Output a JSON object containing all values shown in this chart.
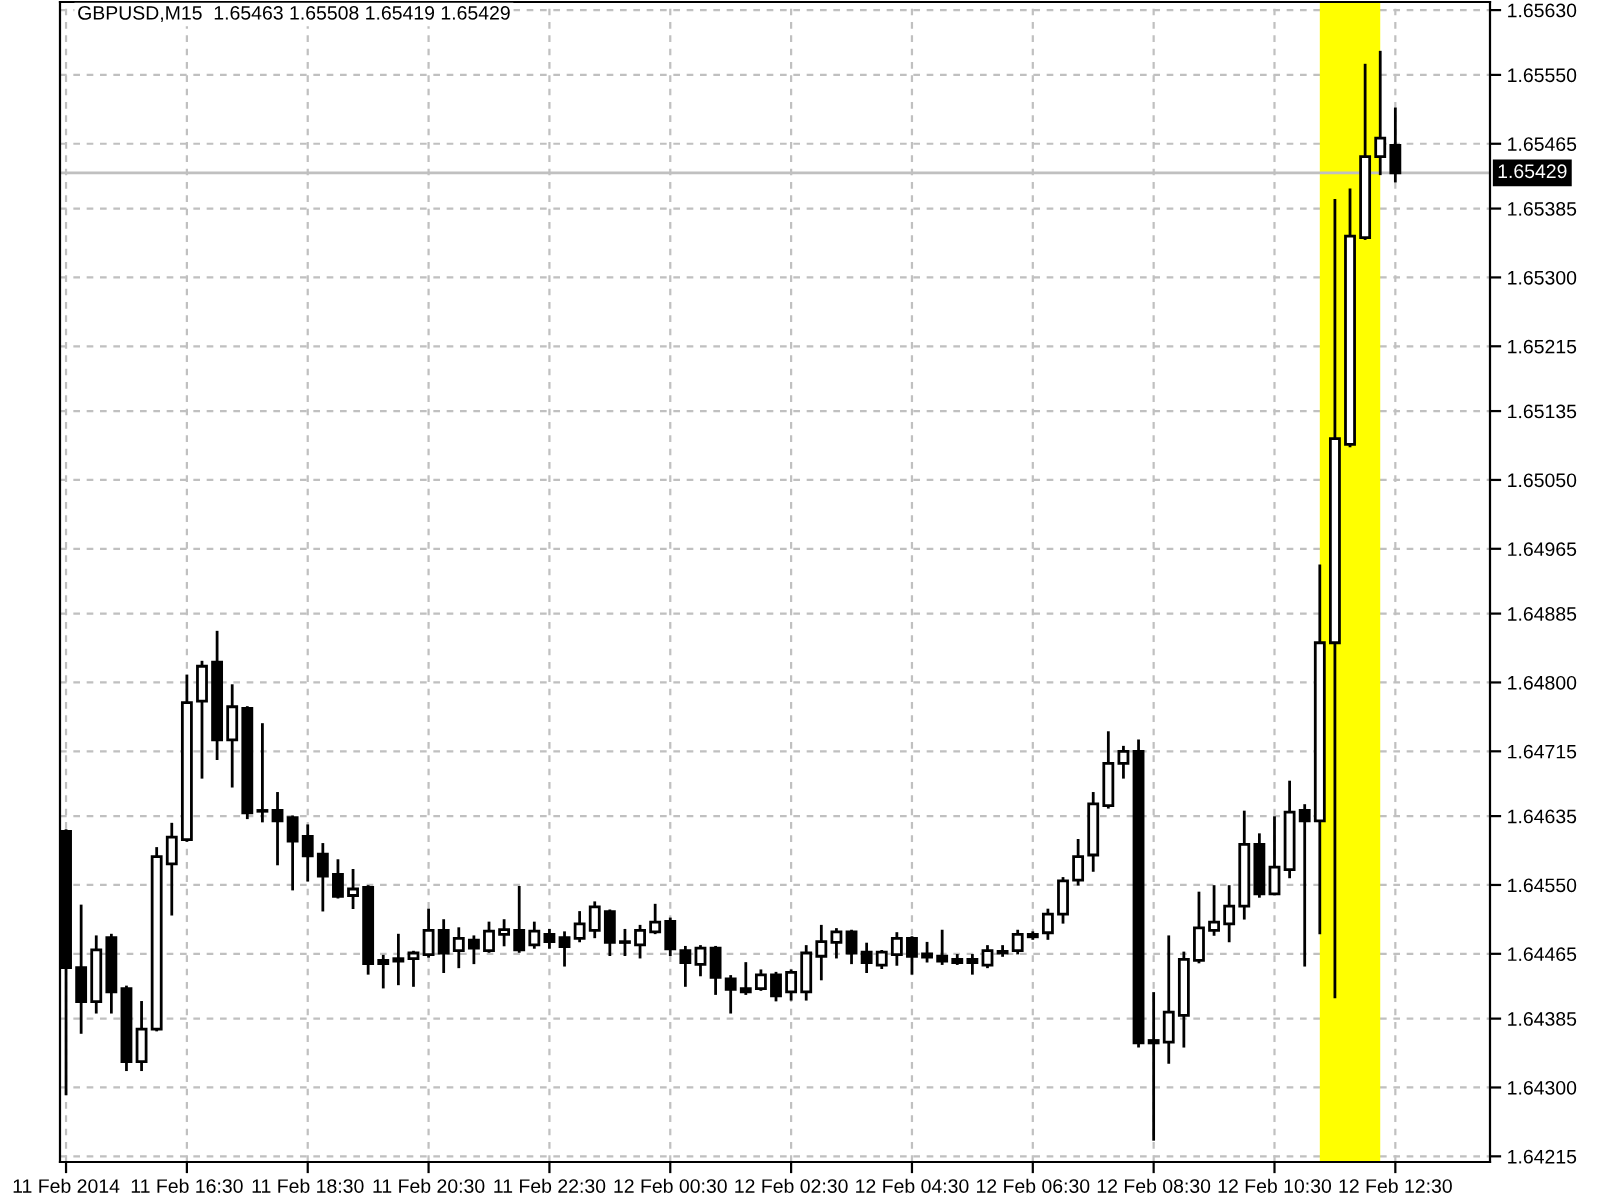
{
  "chart_data": {
    "type": "candlestick",
    "title": "GBPUSD,M15  1.65463 1.65508 1.65419 1.65429",
    "x": [
      "2014-02-11T14:30",
      "2014-02-11T14:45",
      "2014-02-11T15:00",
      "2014-02-11T15:15",
      "2014-02-11T15:30",
      "2014-02-11T15:45",
      "2014-02-11T16:00",
      "2014-02-11T16:15",
      "2014-02-11T16:30",
      "2014-02-11T16:45",
      "2014-02-11T17:00",
      "2014-02-11T17:15",
      "2014-02-11T17:30",
      "2014-02-11T17:45",
      "2014-02-11T18:00",
      "2014-02-11T18:15",
      "2014-02-11T18:30",
      "2014-02-11T18:45",
      "2014-02-11T19:00",
      "2014-02-11T19:15",
      "2014-02-11T19:30",
      "2014-02-11T19:45",
      "2014-02-11T20:00",
      "2014-02-11T20:15",
      "2014-02-11T20:30",
      "2014-02-11T20:45",
      "2014-02-11T21:00",
      "2014-02-11T21:15",
      "2014-02-11T21:30",
      "2014-02-11T21:45",
      "2014-02-11T22:00",
      "2014-02-11T22:15",
      "2014-02-11T22:30",
      "2014-02-11T22:45",
      "2014-02-11T23:00",
      "2014-02-11T23:15",
      "2014-02-11T23:30",
      "2014-02-11T23:45",
      "2014-02-12T00:00",
      "2014-02-12T00:15",
      "2014-02-12T00:30",
      "2014-02-12T00:45",
      "2014-02-12T01:00",
      "2014-02-12T01:15",
      "2014-02-12T01:30",
      "2014-02-12T01:45",
      "2014-02-12T02:00",
      "2014-02-12T02:15",
      "2014-02-12T02:30",
      "2014-02-12T02:45",
      "2014-02-12T03:00",
      "2014-02-12T03:15",
      "2014-02-12T03:30",
      "2014-02-12T03:45",
      "2014-02-12T04:00",
      "2014-02-12T04:15",
      "2014-02-12T04:30",
      "2014-02-12T04:45",
      "2014-02-12T05:00",
      "2014-02-12T05:15",
      "2014-02-12T05:30",
      "2014-02-12T05:45",
      "2014-02-12T06:00",
      "2014-02-12T06:15",
      "2014-02-12T06:30",
      "2014-02-12T06:45",
      "2014-02-12T07:00",
      "2014-02-12T07:15",
      "2014-02-12T07:30",
      "2014-02-12T07:45",
      "2014-02-12T08:00",
      "2014-02-12T08:15",
      "2014-02-12T08:30",
      "2014-02-12T08:45",
      "2014-02-12T09:00",
      "2014-02-12T09:15",
      "2014-02-12T09:30",
      "2014-02-12T09:45",
      "2014-02-12T10:00",
      "2014-02-12T10:15",
      "2014-02-12T10:30",
      "2014-02-12T10:45",
      "2014-02-12T11:00",
      "2014-02-12T11:15",
      "2014-02-12T11:30",
      "2014-02-12T11:45",
      "2014-02-12T12:00",
      "2014-02-12T12:15",
      "2014-02-12T12:30"
    ],
    "ohlc": [
      [
        1.64616,
        1.64617,
        1.64292,
        1.64448
      ],
      [
        1.64448,
        1.64524,
        1.64368,
        1.64406
      ],
      [
        1.64406,
        1.64486,
        1.64393,
        1.6447
      ],
      [
        1.64485,
        1.64488,
        1.64393,
        1.64418
      ],
      [
        1.64422,
        1.64424,
        1.64322,
        1.64332
      ],
      [
        1.64332,
        1.64405,
        1.64322,
        1.64372
      ],
      [
        1.64372,
        1.64595,
        1.64371,
        1.64585
      ],
      [
        1.64576,
        1.64625,
        1.64514,
        1.64609
      ],
      [
        1.64606,
        1.64808,
        1.64605,
        1.64775
      ],
      [
        1.64777,
        1.64825,
        1.64683,
        1.6482
      ],
      [
        1.64825,
        1.64862,
        1.64706,
        1.64729
      ],
      [
        1.64729,
        1.64796,
        1.64672,
        1.6477
      ],
      [
        1.64768,
        1.64769,
        1.64633,
        1.64639
      ],
      [
        1.64642,
        1.64748,
        1.64629,
        1.64641
      ],
      [
        1.64642,
        1.64663,
        1.64576,
        1.64629
      ],
      [
        1.64633,
        1.64634,
        1.64545,
        1.64604
      ],
      [
        1.6461,
        1.64623,
        1.64556,
        1.64586
      ],
      [
        1.64588,
        1.646,
        1.64519,
        1.64561
      ],
      [
        1.64563,
        1.6458,
        1.64535,
        1.64536
      ],
      [
        1.64537,
        1.64568,
        1.64522,
        1.64545
      ],
      [
        1.64547,
        1.64548,
        1.64441,
        1.64453
      ],
      [
        1.64457,
        1.64462,
        1.64424,
        1.64453
      ],
      [
        1.64459,
        1.64488,
        1.64428,
        1.64456
      ],
      [
        1.64459,
        1.64467,
        1.64426,
        1.64466
      ],
      [
        1.64464,
        1.64519,
        1.64462,
        1.64494
      ],
      [
        1.64494,
        1.64506,
        1.64443,
        1.64466
      ],
      [
        1.64469,
        1.64496,
        1.64449,
        1.64484
      ],
      [
        1.64482,
        1.64486,
        1.64454,
        1.64472
      ],
      [
        1.64469,
        1.64503,
        1.64468,
        1.64493
      ],
      [
        1.64489,
        1.64506,
        1.64476,
        1.64495
      ],
      [
        1.64494,
        1.64547,
        1.64468,
        1.6447
      ],
      [
        1.64476,
        1.64503,
        1.64473,
        1.64493
      ],
      [
        1.64489,
        1.64494,
        1.64473,
        1.6448
      ],
      [
        1.64485,
        1.64491,
        1.64451,
        1.64474
      ],
      [
        1.64484,
        1.64516,
        1.64481,
        1.64502
      ],
      [
        1.64494,
        1.64528,
        1.64486,
        1.64523
      ],
      [
        1.64517,
        1.64518,
        1.64464,
        1.64479
      ],
      [
        1.6448,
        1.64494,
        1.64464,
        1.64479
      ],
      [
        1.64476,
        1.64499,
        1.64461,
        1.64494
      ],
      [
        1.64492,
        1.64525,
        1.64491,
        1.64504
      ],
      [
        1.64505,
        1.64508,
        1.64464,
        1.64471
      ],
      [
        1.64469,
        1.64473,
        1.64426,
        1.64454
      ],
      [
        1.64452,
        1.64474,
        1.64439,
        1.64472
      ],
      [
        1.64472,
        1.64473,
        1.64416,
        1.64436
      ],
      [
        1.64434,
        1.64437,
        1.64393,
        1.64421
      ],
      [
        1.64422,
        1.64453,
        1.64416,
        1.64418
      ],
      [
        1.64422,
        1.64444,
        1.64421,
        1.64439
      ],
      [
        1.64439,
        1.64441,
        1.64408,
        1.64413
      ],
      [
        1.64418,
        1.64444,
        1.64409,
        1.64442
      ],
      [
        1.64418,
        1.64474,
        1.64409,
        1.64466
      ],
      [
        1.64462,
        1.64499,
        1.64434,
        1.6448
      ],
      [
        1.64479,
        1.64495,
        1.64461,
        1.64492
      ],
      [
        1.64492,
        1.64493,
        1.64454,
        1.64466
      ],
      [
        1.64467,
        1.64477,
        1.64443,
        1.64454
      ],
      [
        1.64451,
        1.64468,
        1.64448,
        1.64467
      ],
      [
        1.64464,
        1.6449,
        1.64452,
        1.64484
      ],
      [
        1.64484,
        1.64485,
        1.64441,
        1.64462
      ],
      [
        1.64465,
        1.64478,
        1.64456,
        1.64461
      ],
      [
        1.64462,
        1.64493,
        1.64453,
        1.64456
      ],
      [
        1.64458,
        1.64463,
        1.64453,
        1.64454
      ],
      [
        1.64458,
        1.64463,
        1.64441,
        1.64454
      ],
      [
        1.64451,
        1.64474,
        1.64449,
        1.64469
      ],
      [
        1.64466,
        1.64474,
        1.64463,
        1.64468
      ],
      [
        1.64469,
        1.64493,
        1.64466,
        1.64489
      ],
      [
        1.64489,
        1.64491,
        1.64484,
        1.64486
      ],
      [
        1.64491,
        1.64519,
        1.64484,
        1.64514
      ],
      [
        1.64514,
        1.64558,
        1.64504,
        1.64555
      ],
      [
        1.64556,
        1.64605,
        1.64551,
        1.64585
      ],
      [
        1.64587,
        1.64663,
        1.64568,
        1.6465
      ],
      [
        1.64648,
        1.64738,
        1.64646,
        1.647
      ],
      [
        1.647,
        1.6472,
        1.64683,
        1.64715
      ],
      [
        1.64715,
        1.64728,
        1.64351,
        1.64355
      ],
      [
        1.64358,
        1.64416,
        1.64236,
        1.64355
      ],
      [
        1.64356,
        1.64486,
        1.64331,
        1.64393
      ],
      [
        1.64389,
        1.64466,
        1.64351,
        1.64458
      ],
      [
        1.64457,
        1.6454,
        1.64455,
        1.64497
      ],
      [
        1.64494,
        1.64548,
        1.64489,
        1.64504
      ],
      [
        1.64502,
        1.64548,
        1.64481,
        1.64524
      ],
      [
        1.64524,
        1.6464,
        1.64509,
        1.646
      ],
      [
        1.646,
        1.64612,
        1.64536,
        1.64539
      ],
      [
        1.64539,
        1.64633,
        1.64539,
        1.64572
      ],
      [
        1.64569,
        1.64677,
        1.6456,
        1.6464
      ],
      [
        1.64642,
        1.64648,
        1.64451,
        1.64629
      ],
      [
        1.64629,
        1.64944,
        1.64491,
        1.64849
      ],
      [
        1.64849,
        1.65395,
        1.64412,
        1.65101
      ],
      [
        1.65094,
        1.65408,
        1.65092,
        1.65351
      ],
      [
        1.65349,
        1.65562,
        1.65348,
        1.65449
      ],
      [
        1.65449,
        1.65578,
        1.65428,
        1.65472
      ],
      [
        1.65463,
        1.65508,
        1.65419,
        1.65429
      ]
    ],
    "color": "#000000",
    "xlim": [
      "2014-02-11T14:24",
      "2014-02-12T14:04"
    ],
    "xticks": [
      {
        "value": "2014-02-11T14:30",
        "label": "11 Feb 2014"
      },
      {
        "value": "2014-02-11T16:30",
        "label": "11 Feb 16:30"
      },
      {
        "value": "2014-02-11T18:30",
        "label": "11 Feb 18:30"
      },
      {
        "value": "2014-02-11T20:30",
        "label": "11 Feb 20:30"
      },
      {
        "value": "2014-02-11T22:30",
        "label": "11 Feb 22:30"
      },
      {
        "value": "2014-02-12T00:30",
        "label": "12 Feb 00:30"
      },
      {
        "value": "2014-02-12T02:30",
        "label": "12 Feb 02:30"
      },
      {
        "value": "2014-02-12T04:30",
        "label": "12 Feb 04:30"
      },
      {
        "value": "2014-02-12T06:30",
        "label": "12 Feb 06:30"
      },
      {
        "value": "2014-02-12T08:30",
        "label": "12 Feb 08:30"
      },
      {
        "value": "2014-02-12T10:30",
        "label": "12 Feb 10:30"
      },
      {
        "value": "2014-02-12T12:30",
        "label": "12 Feb 12:30"
      }
    ],
    "ylim": [
      1.64208,
      1.6564
    ],
    "yticks": [
      {
        "value": 1.64215,
        "label": "1.64215"
      },
      {
        "value": 1.643,
        "label": "1.64300"
      },
      {
        "value": 1.64385,
        "label": "1.64385"
      },
      {
        "value": 1.64465,
        "label": "1.64465"
      },
      {
        "value": 1.6455,
        "label": "1.64550"
      },
      {
        "value": 1.64635,
        "label": "1.64635"
      },
      {
        "value": 1.64715,
        "label": "1.64715"
      },
      {
        "value": 1.648,
        "label": "1.64800"
      },
      {
        "value": 1.64885,
        "label": "1.64885"
      },
      {
        "value": 1.64965,
        "label": "1.64965"
      },
      {
        "value": 1.6505,
        "label": "1.65050"
      },
      {
        "value": 1.65135,
        "label": "1.65135"
      },
      {
        "value": 1.65215,
        "label": "1.65215"
      },
      {
        "value": 1.653,
        "label": "1.65300"
      },
      {
        "value": 1.65385,
        "label": "1.65385"
      },
      {
        "value": 1.65465,
        "label": "1.65465"
      },
      {
        "value": 1.6555,
        "label": "1.65550"
      },
      {
        "value": 1.6563,
        "label": "1.65630"
      }
    ],
    "grid": true,
    "ref_lines": [
      {
        "axis": "y",
        "value": 1.65429,
        "label": "1.65429",
        "color": "#c0c0c0"
      }
    ],
    "bands": [
      {
        "axis": "x",
        "from": "2014-02-12T11:15",
        "to": "2014-02-12T12:15",
        "color": "#ffff00"
      }
    ]
  }
}
